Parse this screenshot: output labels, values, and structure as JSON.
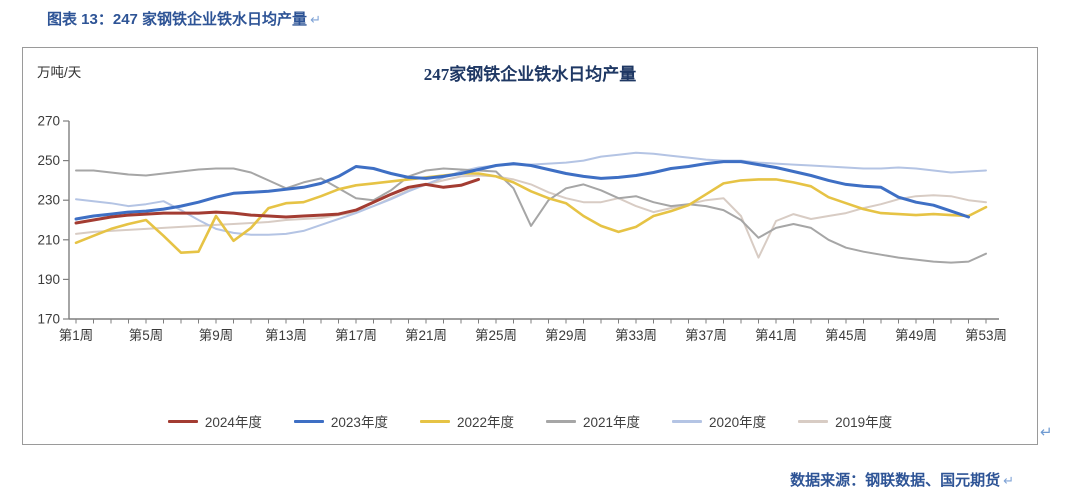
{
  "page": {
    "heading": "图表 13：247 家钢铁企业铁水日均产量",
    "return_mark": "↵",
    "source_note": "数据来源：钢联数据、国元期货"
  },
  "chart_data": {
    "type": "line",
    "title": "247家钢铁企业铁水日均产量",
    "unit_label": "万吨/天",
    "ylabel": "万吨/天",
    "ylim": [
      170,
      270
    ],
    "yticks": [
      270,
      250,
      230,
      210,
      190,
      170
    ],
    "weeks_total": 53,
    "xtick_weeks": [
      1,
      5,
      9,
      13,
      17,
      21,
      25,
      29,
      33,
      37,
      41,
      45,
      49,
      53
    ],
    "xtick_labels": [
      "第1周",
      "第5周",
      "第9周",
      "第13周",
      "第17周",
      "第21周",
      "第25周",
      "第29周",
      "第33周",
      "第37周",
      "第41周",
      "第45周",
      "第49周",
      "第53周"
    ],
    "grid": false,
    "legend_position": "bottom",
    "axis_color": "#7f7f7f",
    "series": [
      {
        "name": "2024年度",
        "color": "#A33C32",
        "values": [
          218.5,
          220,
          221.5,
          222.5,
          223,
          223.5,
          223.5,
          223.5,
          224,
          223.5,
          222.5,
          222,
          221.5,
          222,
          222.5,
          223,
          225,
          229,
          233,
          236.5,
          238,
          236.5,
          237.5,
          240.5,
          null,
          null,
          null,
          null,
          null,
          null,
          null,
          null,
          null,
          null,
          null,
          null,
          null,
          null,
          null,
          null,
          null,
          null,
          null,
          null,
          null,
          null,
          null,
          null,
          null,
          null,
          null,
          null,
          null
        ]
      },
      {
        "name": "2023年度",
        "color": "#3E6FC4",
        "values": [
          220.5,
          222,
          223,
          224,
          224.5,
          225.5,
          227,
          229,
          231.5,
          233.5,
          234,
          234.5,
          235.5,
          236.5,
          238.5,
          242,
          247,
          246,
          243.5,
          241.5,
          241,
          242,
          243.5,
          245.5,
          247.5,
          248.5,
          247.5,
          245.5,
          243.5,
          242,
          241,
          241.5,
          242.5,
          244,
          246,
          247,
          248.5,
          249.5,
          249.5,
          248,
          246.5,
          244.5,
          242.5,
          240,
          238,
          237,
          236.5,
          231.5,
          229,
          227.5,
          224.5,
          221.5,
          null
        ]
      },
      {
        "name": "2022年度",
        "color": "#E6C345",
        "values": [
          208.5,
          212,
          215.5,
          218,
          220,
          212,
          203.5,
          204,
          222,
          209.5,
          216,
          226,
          228.5,
          229,
          232,
          235.5,
          237.5,
          238.5,
          239.5,
          240.5,
          241.5,
          242.5,
          243.5,
          243.5,
          242,
          239,
          234.5,
          231,
          228.5,
          222,
          217,
          214,
          216.5,
          222,
          224.5,
          227.5,
          233,
          238.5,
          240,
          240.5,
          240.5,
          239,
          237,
          231.5,
          228.5,
          225.5,
          223.5,
          223,
          222.5,
          223,
          222.5,
          222,
          226.5
        ]
      },
      {
        "name": "2021年度",
        "color": "#A6A6A6",
        "values": [
          245,
          245,
          244,
          243,
          242.5,
          243.5,
          244.5,
          245.5,
          246,
          246,
          244,
          240,
          236,
          239,
          241,
          236,
          231,
          230,
          235,
          242,
          245,
          246,
          245.5,
          245,
          244.5,
          236,
          217,
          230,
          236,
          238,
          235,
          231,
          232,
          229,
          227,
          228,
          227,
          225,
          220,
          211,
          216,
          218,
          216,
          210,
          206,
          204,
          202.5,
          201,
          200,
          199,
          198.5,
          199,
          203
        ]
      },
      {
        "name": "2020年度",
        "color": "#B4C4E4",
        "values": [
          230.5,
          229.5,
          228.5,
          227,
          228,
          229.5,
          225,
          220,
          215.5,
          213.5,
          212.5,
          212.5,
          213,
          214.5,
          217.5,
          220.5,
          223.5,
          227,
          230.5,
          234.5,
          238,
          241.5,
          244.5,
          246.5,
          247.5,
          248,
          248,
          248.5,
          249,
          250,
          252,
          253,
          254,
          253.5,
          252.5,
          251.5,
          250.5,
          250,
          250,
          249,
          248.5,
          248,
          247.5,
          247,
          246.5,
          246,
          246,
          246.5,
          246,
          245,
          244,
          244.5,
          245
        ]
      },
      {
        "name": "2019年度",
        "color": "#D8CCC4",
        "values": [
          213,
          214,
          214.5,
          215,
          215.5,
          216,
          216.5,
          217,
          217.5,
          218,
          218.5,
          219,
          220,
          220.5,
          221,
          222.5,
          224,
          227,
          231,
          235,
          238,
          240,
          242,
          242.5,
          242,
          240.5,
          238,
          234,
          231,
          229,
          229,
          231,
          227,
          224,
          226,
          228,
          230,
          231,
          222,
          201,
          219.5,
          223,
          220.5,
          222,
          223.5,
          226,
          228,
          230.5,
          232,
          232.5,
          232,
          230,
          229
        ]
      }
    ]
  }
}
